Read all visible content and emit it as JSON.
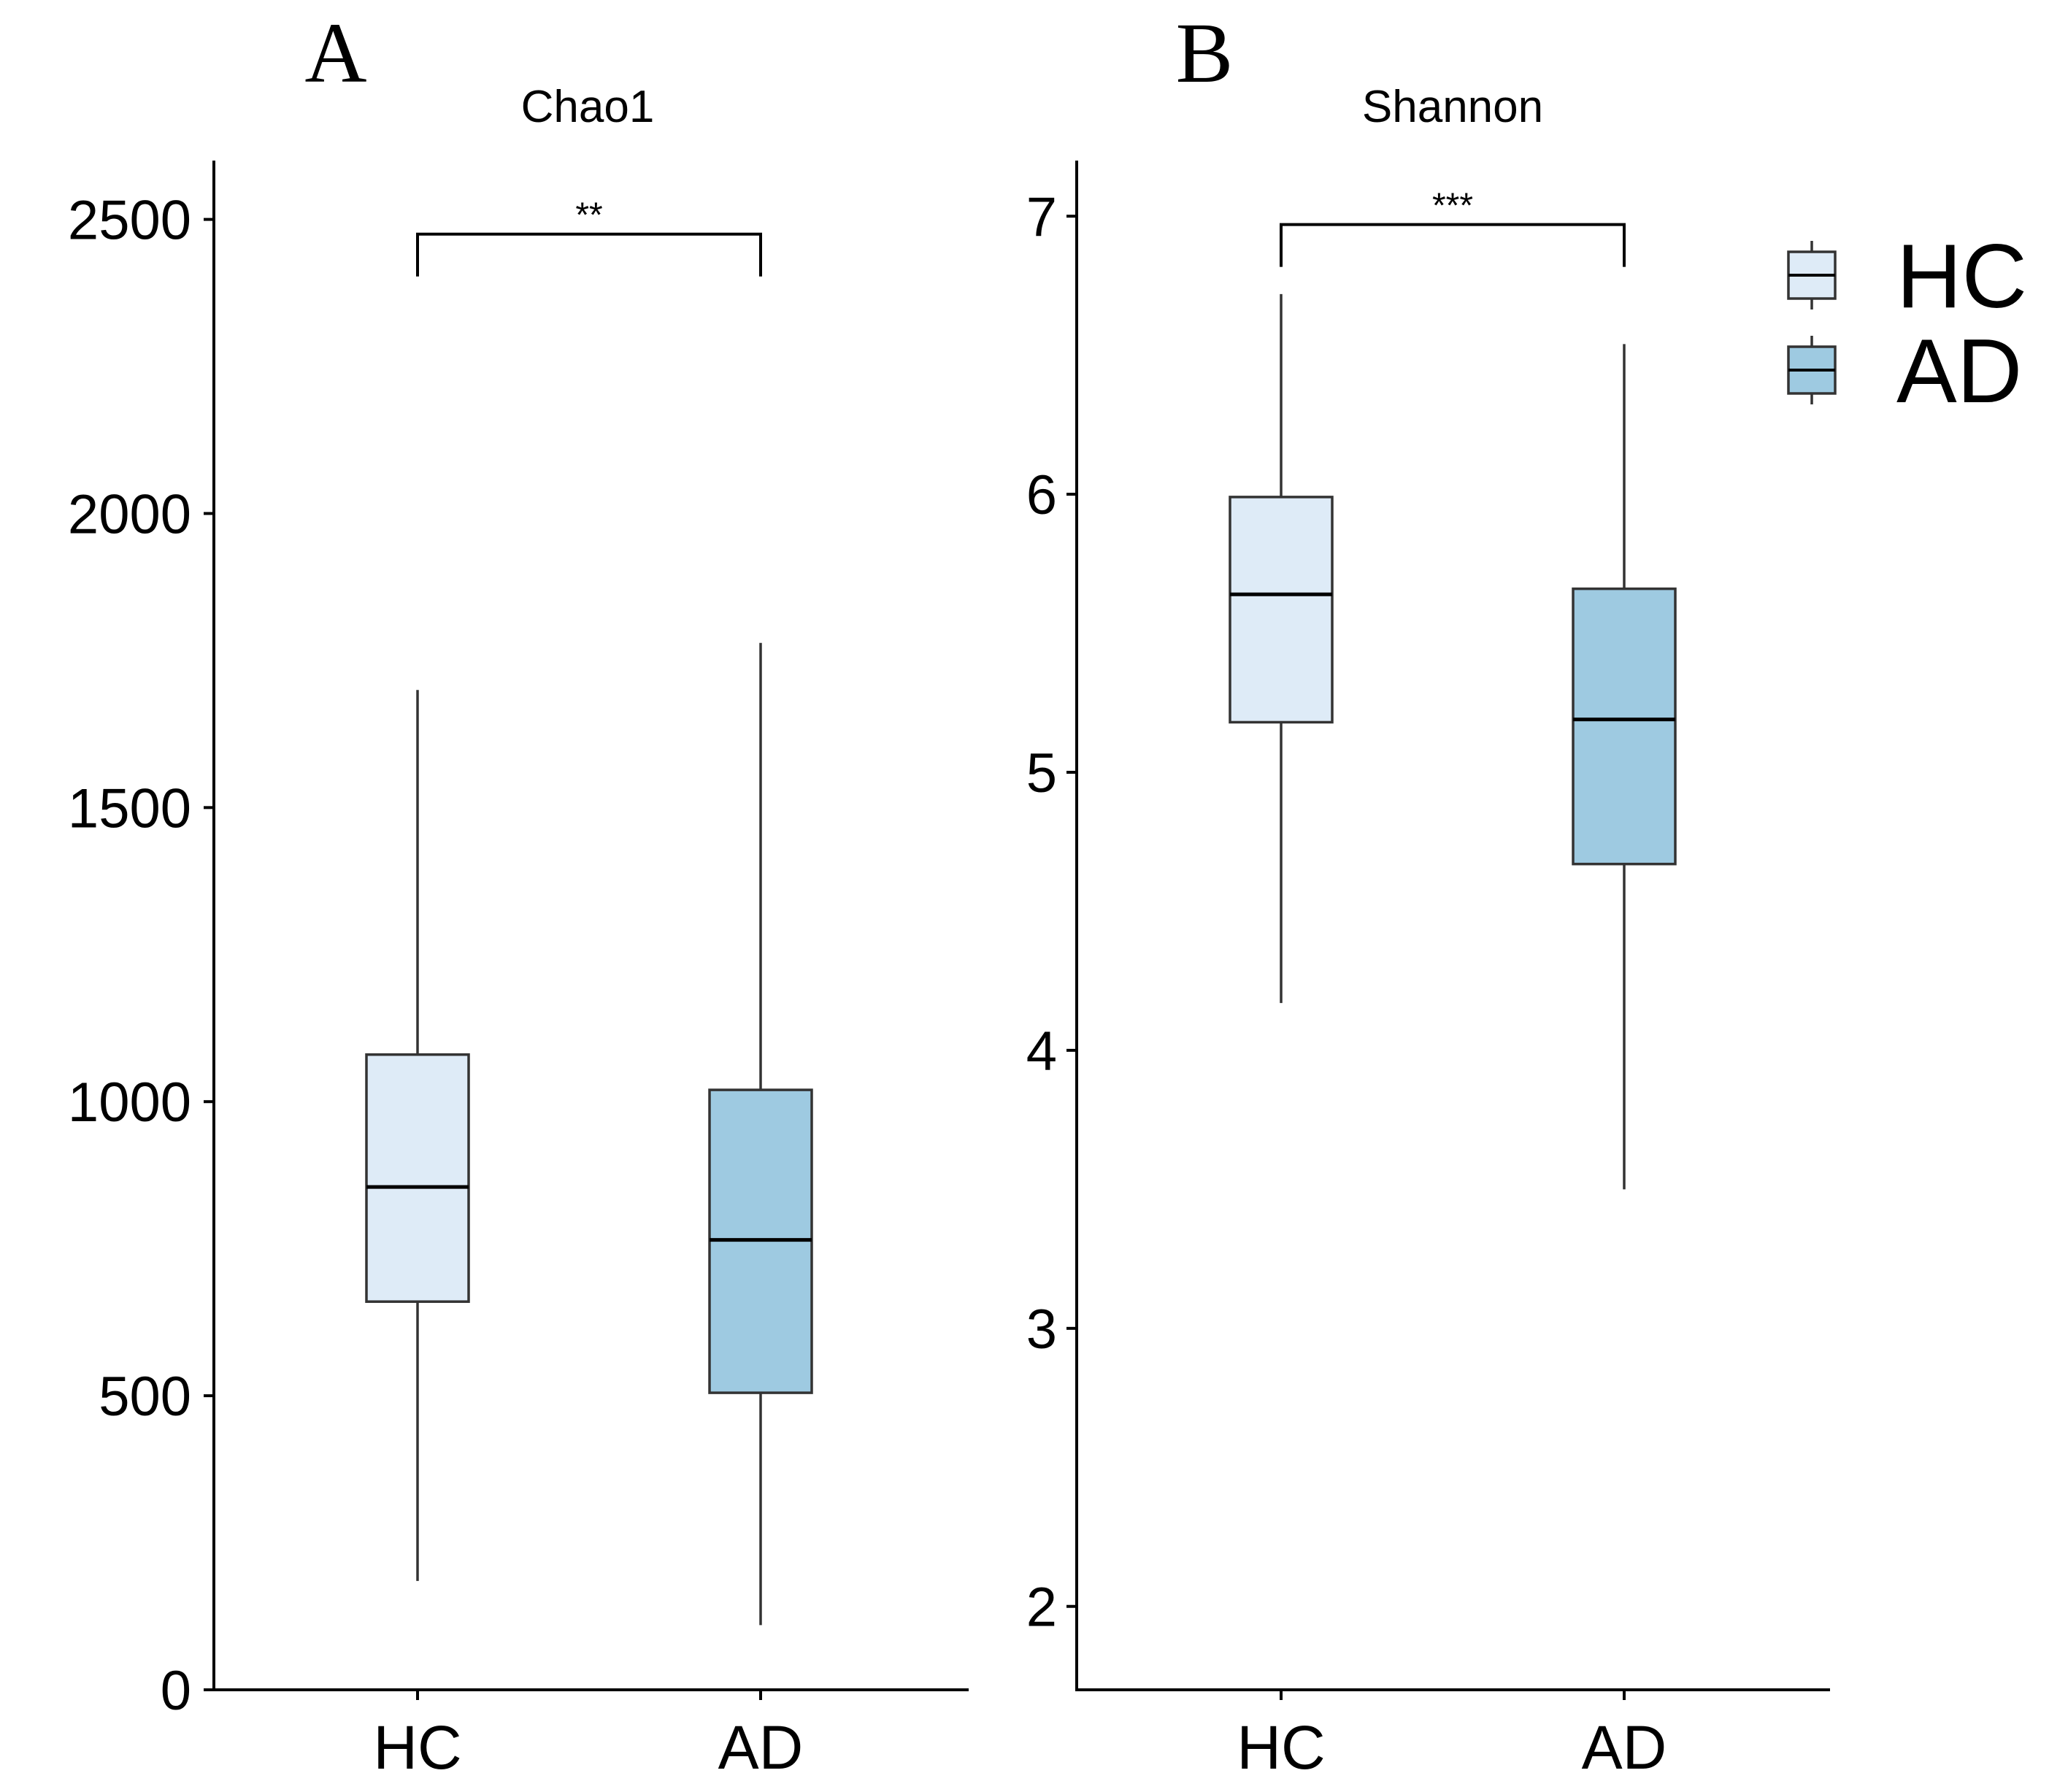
{
  "panels": [
    {
      "letter": "A",
      "title": "Chao1",
      "ylim": [
        0,
        2600
      ],
      "yticks": [
        0,
        500,
        1000,
        1500,
        2000,
        2500
      ],
      "ytick_labels": [
        "0",
        "500",
        "1000",
        "1500",
        "2000",
        "2500"
      ],
      "significance": "**"
    },
    {
      "letter": "B",
      "title": "Shannon",
      "ylim": [
        1.7,
        7.2
      ],
      "yticks": [
        2,
        3,
        4,
        5,
        6,
        7
      ],
      "ytick_labels": [
        "2",
        "3",
        "4",
        "5",
        "6",
        "7"
      ],
      "significance": "***"
    }
  ],
  "legend": {
    "position": "top-right",
    "entries": [
      {
        "label": "HC",
        "color": "#deebf7"
      },
      {
        "label": "AD",
        "color": "#9ecae1"
      }
    ]
  },
  "chart_data": [
    {
      "type": "box",
      "title": "Chao1",
      "categories": [
        "HC",
        "AD"
      ],
      "ylim": [
        0,
        2600
      ],
      "grid": false,
      "boxes": [
        {
          "group": "HC",
          "min": 185,
          "q1": 660,
          "median": 855,
          "q3": 1080,
          "max": 1700,
          "color": "#deebf7"
        },
        {
          "group": "AD",
          "min": 110,
          "q1": 505,
          "median": 765,
          "q3": 1020,
          "max": 1780,
          "color": "#9ecae1"
        }
      ],
      "annotation": {
        "from": "HC",
        "to": "AD",
        "label": "**",
        "y": 2475
      }
    },
    {
      "type": "box",
      "title": "Shannon",
      "categories": [
        "HC",
        "AD"
      ],
      "ylim": [
        1.7,
        7.2
      ],
      "grid": false,
      "boxes": [
        {
          "group": "HC",
          "min": 4.17,
          "q1": 5.18,
          "median": 5.64,
          "q3": 5.99,
          "max": 6.72,
          "color": "#deebf7"
        },
        {
          "group": "AD",
          "min": 3.5,
          "q1": 4.67,
          "median": 5.19,
          "q3": 5.66,
          "max": 6.54,
          "color": "#9ecae1"
        }
      ],
      "annotation": {
        "from": "HC",
        "to": "AD",
        "label": "***",
        "y": 6.97
      }
    }
  ]
}
